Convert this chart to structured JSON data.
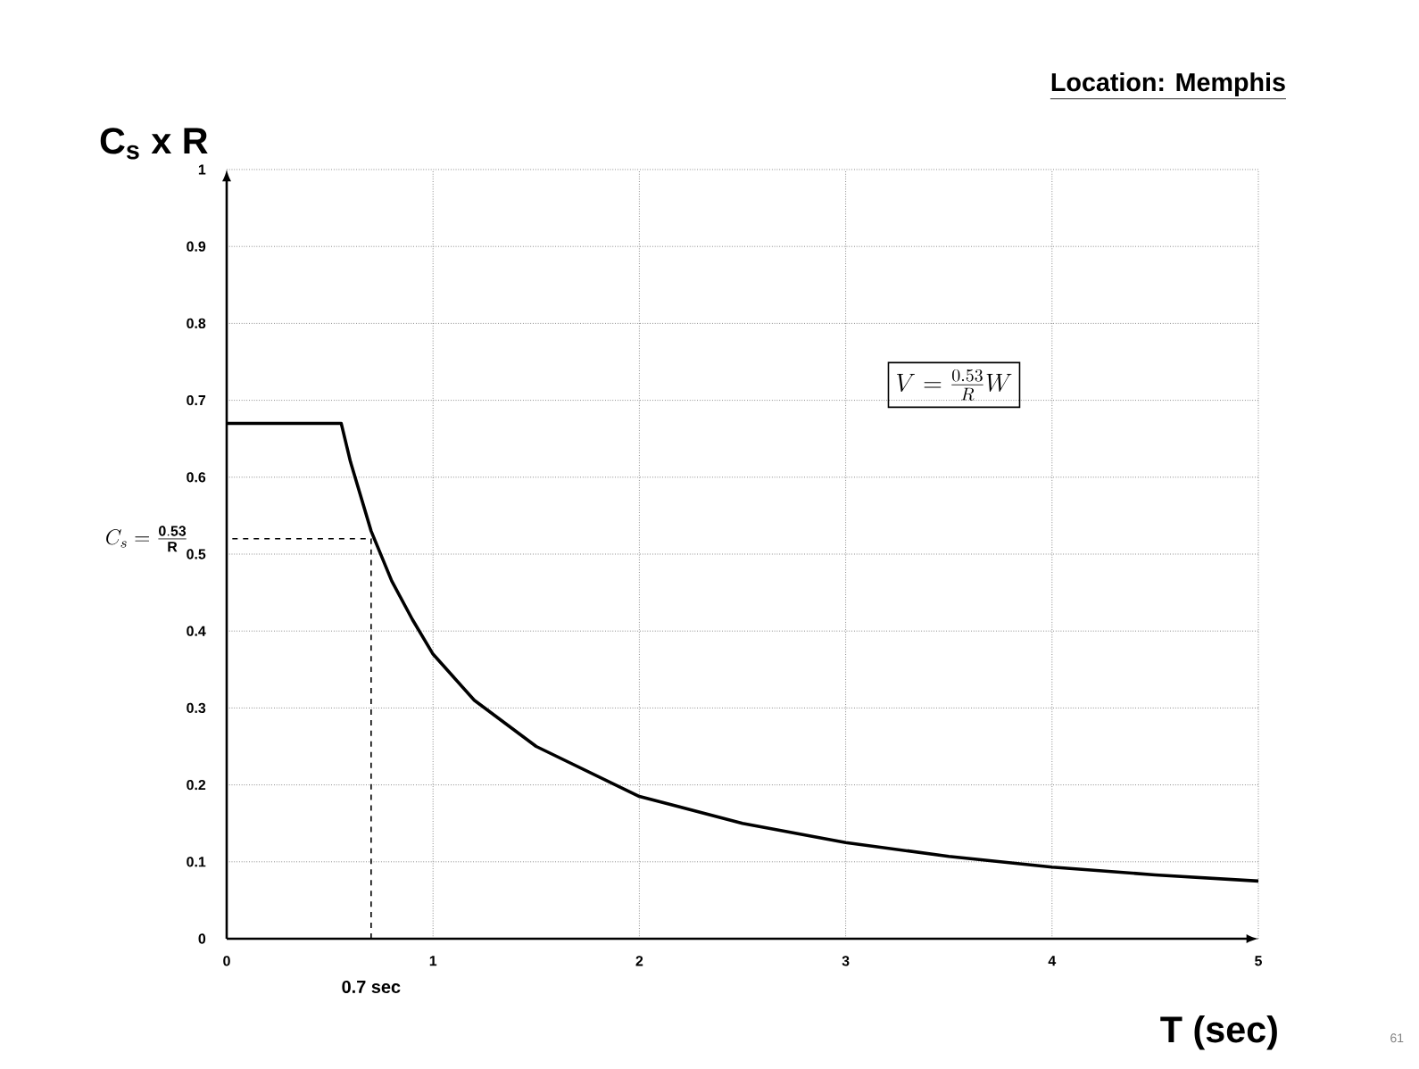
{
  "chart_data": {
    "type": "line",
    "title": "Location: Memphis",
    "xlabel": "T (sec)",
    "ylabel": "C$_{s}$ x R",
    "xlim": [
      0,
      5
    ],
    "xticks": [
      0,
      1,
      2,
      3,
      4,
      5
    ],
    "ylim": [
      0,
      1
    ],
    "yticks": [
      0,
      0.1,
      0.2,
      0.3,
      0.4,
      0.5,
      0.6,
      0.7,
      0.8,
      0.9,
      1
    ],
    "grid": true,
    "series": [
      {
        "color": "#000000",
        "x": [
          0,
          0.555,
          0.6,
          0.7,
          0.8,
          0.9,
          1,
          1.2,
          1.5,
          2,
          2.5,
          3,
          3.5,
          4,
          4.5,
          5
        ],
        "values": [
          0.67,
          0.67,
          0.62,
          0.53,
          0.465,
          0.415,
          0.37,
          0.31,
          0.25,
          0.185,
          0.15,
          0.125,
          0.107,
          0.093,
          0.083,
          0.075
        ]
      },
      {
        "color": "#000000",
        "line_style": "dashed",
        "x": [
          0.7,
          0.7,
          0
        ],
        "values": [
          0,
          0.52,
          0.52
        ]
      }
    ],
    "annotations": [
      "V = \\frac{0.53}{R} W",
      {
        "text": "C_s = \\frac{\\mathbf{0.53}}{\\mathbf{R}}",
        "x": 0,
        "y": 0.52
      },
      {
        "text": "0.7 sec",
        "x": 0.7,
        "y": 0
      },
      "61"
    ]
  }
}
